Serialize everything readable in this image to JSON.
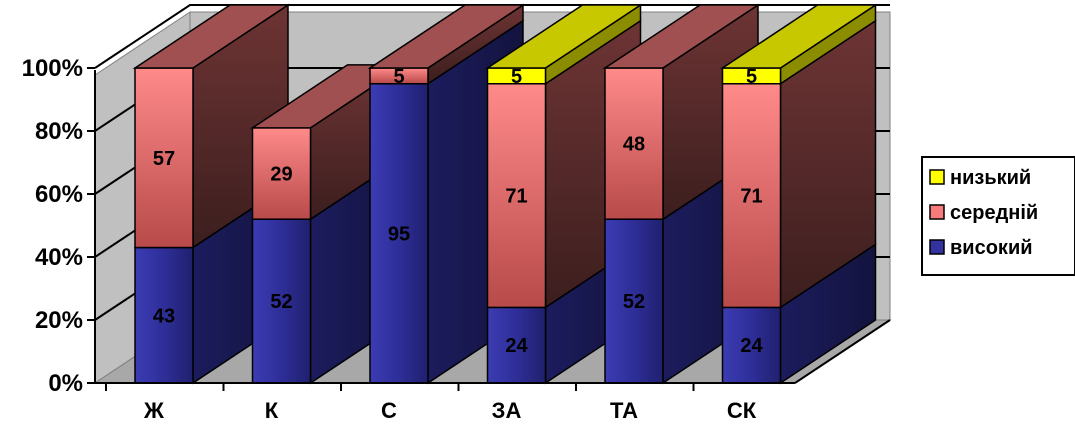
{
  "chart_data": {
    "type": "bar",
    "stacked": true,
    "three_d": true,
    "categories": [
      "Ж",
      "К",
      "С",
      "ЗА",
      "ТА",
      "СК"
    ],
    "series": [
      {
        "name": "високий",
        "values": [
          43,
          52,
          95,
          24,
          52,
          24
        ],
        "color": "#3333a0"
      },
      {
        "name": "середній",
        "values": [
          57,
          29,
          5,
          71,
          48,
          71
        ],
        "color": "#f77b7b"
      },
      {
        "name": "низький",
        "values": [
          0,
          0,
          0,
          5,
          0,
          5
        ],
        "color": "#ffff00"
      }
    ],
    "data_labels": [
      [
        "43",
        "52",
        "95",
        "24",
        "52",
        "24"
      ],
      [
        "57",
        "29",
        "5",
        "71",
        "48",
        "71"
      ],
      [
        "",
        "",
        "",
        "5",
        "",
        "5"
      ]
    ],
    "y_ticks": [
      "0%",
      "20%",
      "40%",
      "60%",
      "80%",
      "100%"
    ],
    "ylim": [
      0,
      100
    ],
    "grid": true,
    "legend_position": "right",
    "title": "",
    "xlabel": "",
    "ylabel": ""
  }
}
